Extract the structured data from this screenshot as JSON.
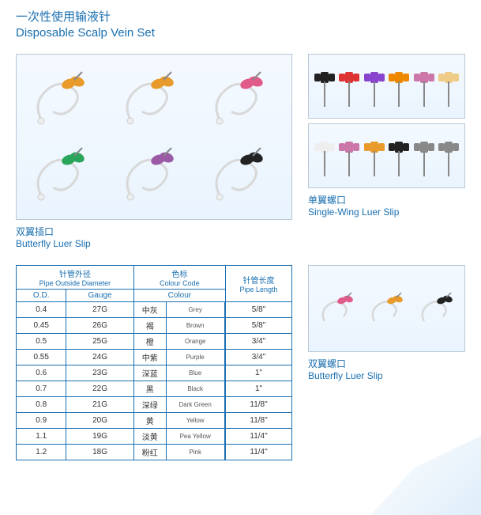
{
  "title": {
    "cn": "一次性使用输液针",
    "en": "Disposable Scalp  Vein  Set"
  },
  "main_panel": {
    "butterfly_colors": [
      "#e89a2a",
      "#e89a2a",
      "#e05a8a",
      "#2aa55a",
      "#9a5aa5",
      "#222222"
    ],
    "caption_cn": "双翼插口",
    "caption_en": "Butterfly  Luer  Slip"
  },
  "side_top1": {
    "needle_colors": [
      "#222",
      "#d33",
      "#84c",
      "#e80",
      "#c7a",
      "#ec8"
    ],
    "caption_cn": "",
    "caption_en": ""
  },
  "side_top2": {
    "needle_colors": [
      "#eee",
      "#c7a",
      "#e89a2a",
      "#222",
      "#888",
      "#888"
    ],
    "caption_cn": "单翼螺口",
    "caption_en": "Single-Wing Luer Slip"
  },
  "side_mid": {
    "butterfly_colors": [
      "#e05a8a",
      "#e89a2a",
      "#222"
    ],
    "caption_cn": "双翼螺口",
    "caption_en": "Butterfly  Luer  Slip"
  },
  "table": {
    "headers": {
      "diam_cn": "针管外径",
      "diam_en": "Pipe Outside Diameter",
      "od": "O.D.",
      "gauge": "Gauge",
      "color_cn": "色标",
      "color_en": "Colour Code",
      "colour": "Colour",
      "len_cn": "针管长度",
      "len_en": "Pipe Length"
    },
    "rows": [
      {
        "od": "0.4",
        "gauge": "27G",
        "cn": "中灰",
        "en": "Grey",
        "swatch": "#a8a8a8",
        "len": "5/8\""
      },
      {
        "od": "0.45",
        "gauge": "26G",
        "cn": "褐",
        "en": "Brown",
        "swatch": "#7a4a2a",
        "len": "5/8\""
      },
      {
        "od": "0.5",
        "gauge": "25G",
        "cn": "橙",
        "en": "Orange",
        "swatch": "#e8861a",
        "len": "3/4\""
      },
      {
        "od": "0.55",
        "gauge": "24G",
        "cn": "中紫",
        "en": "Purple",
        "swatch": "#8a4a9a",
        "len": "3/4\""
      },
      {
        "od": "0.6",
        "gauge": "23G",
        "cn": "深蓝",
        "en": "Blue",
        "swatch": "#1a4a9a",
        "len": "1\""
      },
      {
        "od": "0.7",
        "gauge": "22G",
        "cn": "黑",
        "en": "Black",
        "swatch": "#000000",
        "len": "1\""
      },
      {
        "od": "0.8",
        "gauge": "21G",
        "cn": "深绿",
        "en": "Dark Green",
        "swatch": "#1a6a3a",
        "len": "11/8\""
      },
      {
        "od": "0.9",
        "gauge": "20G",
        "cn": "黄",
        "en": "Yellow",
        "swatch": "#f5e020",
        "len": "11/8\""
      },
      {
        "od": "1.1",
        "gauge": "19G",
        "cn": "淡黄",
        "en": "Pea Yellow",
        "swatch": "#f0f0b0",
        "len": "11/4\""
      },
      {
        "od": "1.2",
        "gauge": "18G",
        "cn": "粉红",
        "en": "Pink",
        "swatch": "#f0a8c0",
        "len": "11/4\""
      }
    ]
  }
}
